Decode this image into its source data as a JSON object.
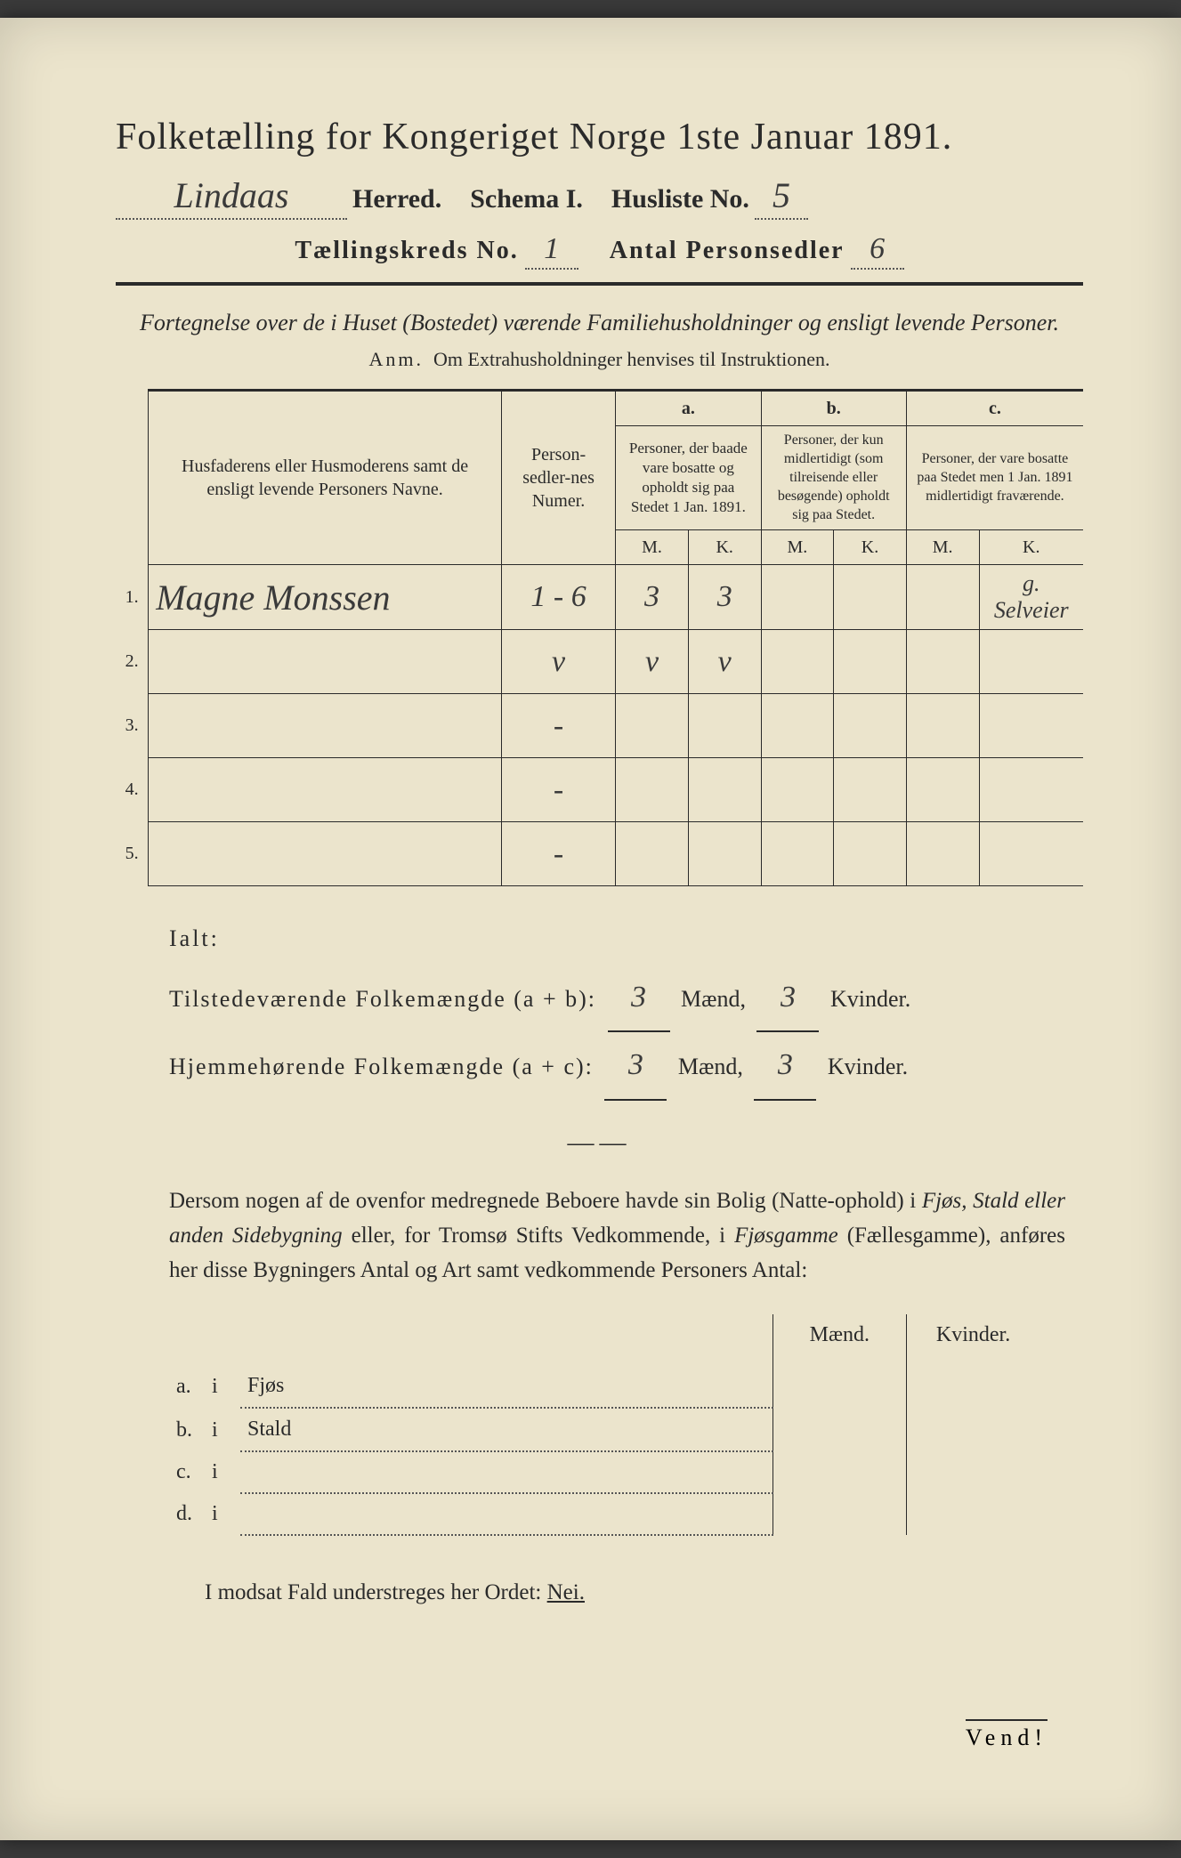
{
  "colors": {
    "paper": "#ebe4cc",
    "ink": "#2a2a2a",
    "handwriting": "#3a3a3a"
  },
  "header": {
    "title": "Folketælling for Kongeriget Norge 1ste Januar 1891.",
    "herred_value": "Lindaas",
    "herred_label": "Herred.",
    "schema_label": "Schema I.",
    "husliste_label": "Husliste No.",
    "husliste_value": "5",
    "kreds_label": "Tællingskreds No.",
    "kreds_value": "1",
    "personsedler_label": "Antal Personsedler",
    "personsedler_value": "6"
  },
  "subtitle": "Fortegnelse over de i Huset (Bostedet) værende Familiehusholdninger og ensligt levende Personer.",
  "anm_prefix": "Anm.",
  "anm_text": "Om Extrahusholdninger henvises til Instruktionen.",
  "table": {
    "head_name": "Husfaderens eller Husmoderens samt de ensligt levende Personers Navne.",
    "head_num": "Person-sedler-nes Numer.",
    "col_a_letter": "a.",
    "col_a": "Personer, der baade vare bosatte og opholdt sig paa Stedet 1 Jan. 1891.",
    "col_b_letter": "b.",
    "col_b": "Personer, der kun midlertidigt (som tilreisende eller besøgende) opholdt sig paa Stedet.",
    "col_c_letter": "c.",
    "col_c": "Personer, der vare bosatte paa Stedet men 1 Jan. 1891 midlertidigt fraværende.",
    "mk_m": "M.",
    "mk_k": "K.",
    "rows": [
      {
        "n": "1.",
        "name": "Magne Monssen",
        "num": "1 - 6",
        "am": "3",
        "ak": "3",
        "bm": "",
        "bk": "",
        "cm": "",
        "ck": "",
        "note": "g. Selveier"
      },
      {
        "n": "2.",
        "name": "",
        "num": "v",
        "am": "v",
        "ak": "v",
        "bm": "",
        "bk": "",
        "cm": "",
        "ck": "",
        "note": ""
      },
      {
        "n": "3.",
        "name": "",
        "num": "-",
        "am": "",
        "ak": "",
        "bm": "",
        "bk": "",
        "cm": "",
        "ck": "",
        "note": ""
      },
      {
        "n": "4.",
        "name": "",
        "num": "-",
        "am": "",
        "ak": "",
        "bm": "",
        "bk": "",
        "cm": "",
        "ck": "",
        "note": ""
      },
      {
        "n": "5.",
        "name": "",
        "num": "-",
        "am": "",
        "ak": "",
        "bm": "",
        "bk": "",
        "cm": "",
        "ck": "",
        "note": ""
      }
    ]
  },
  "ialt": {
    "label": "Ialt:",
    "line1_label": "Tilstedeværende Folkemængde (a + b):",
    "line1_m": "3",
    "line1_k": "3",
    "line2_label": "Hjemmehørende Folkemængde (a + c):",
    "line2_m": "3",
    "line2_k": "3",
    "maend": "Mænd,",
    "kvinder": "Kvinder."
  },
  "para_text_1": "Dersom nogen af de ovenfor medregnede Beboere havde sin Bolig (Natte-ophold) i ",
  "para_it_1": "Fjøs, Stald eller anden Sidebygning",
  "para_text_2": " eller, for Tromsø Stifts Vedkommende, i ",
  "para_it_2": "Fjøsgamme",
  "para_text_3": " (Fællesgamme), anføres her disse Bygningers Antal og Art samt vedkommende Personers Antal:",
  "side": {
    "head_m": "Mænd.",
    "head_k": "Kvinder.",
    "rows": [
      {
        "l": "a.",
        "i": "i",
        "label": "Fjøs"
      },
      {
        "l": "b.",
        "i": "i",
        "label": "Stald"
      },
      {
        "l": "c.",
        "i": "i",
        "label": ""
      },
      {
        "l": "d.",
        "i": "i",
        "label": ""
      }
    ]
  },
  "final_text": "I modsat Fald understreges her Ordet: ",
  "final_nei": "Nei.",
  "vend": "Vend!"
}
